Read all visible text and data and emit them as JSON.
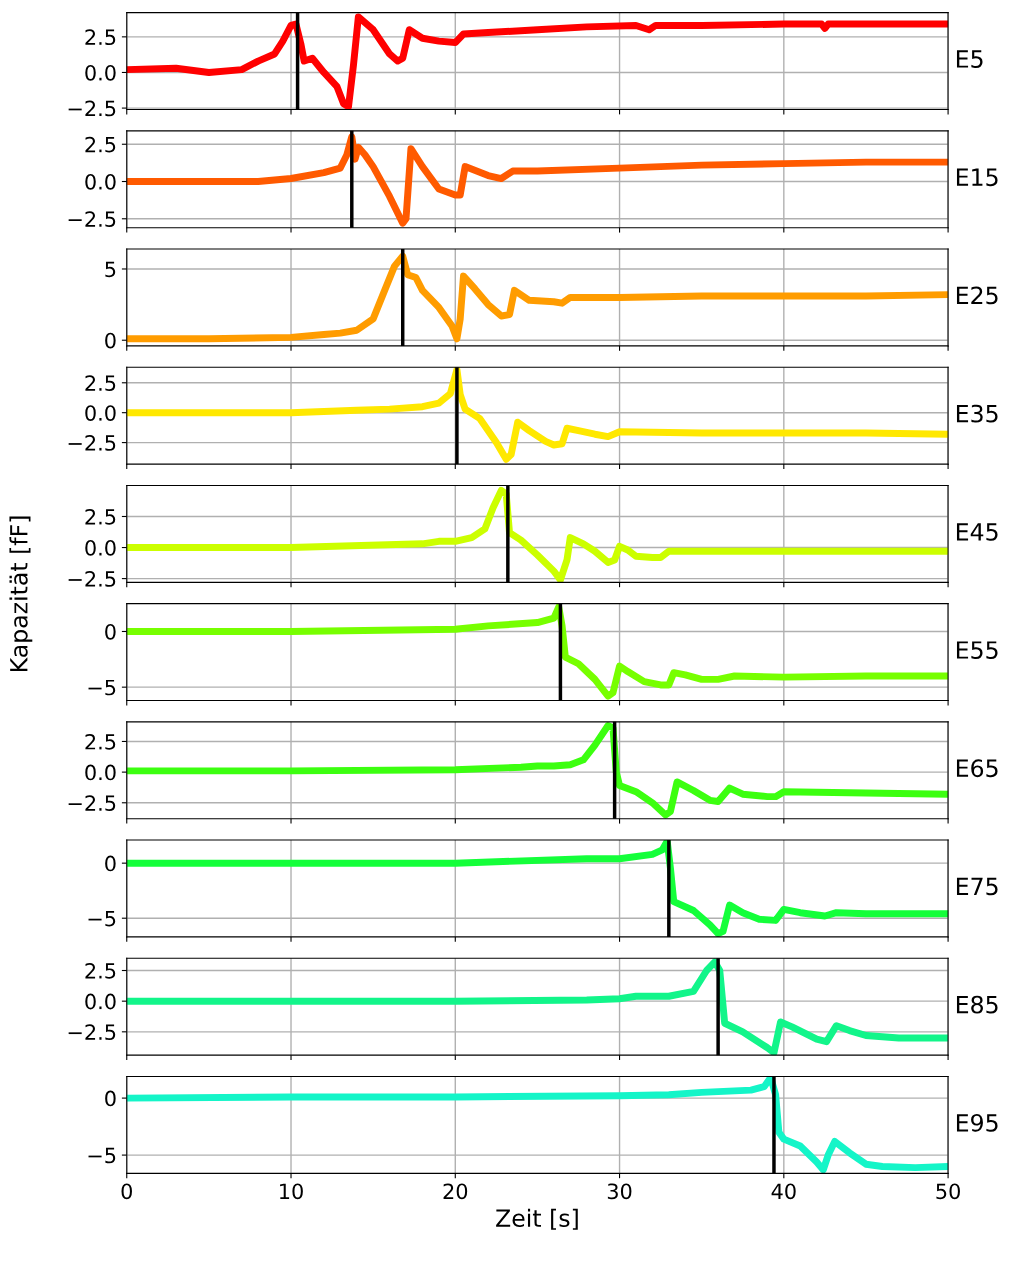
{
  "chart_data": [
    {
      "type": "line",
      "annotations": [
        "E5"
      ],
      "xlim": [
        0,
        50
      ],
      "xticks": [
        0,
        10,
        20,
        30,
        40,
        50
      ],
      "ylim": [
        -2.6,
        4.2
      ],
      "yticks": [
        {
          "value": -2.5,
          "label": "−2.5"
        },
        {
          "value": 0,
          "label": "0.0"
        },
        2.5
      ],
      "grid": true,
      "tick_labels": "y",
      "ref_lines": [
        {
          "axis": "x",
          "value": 10.4,
          "color": "#000000"
        }
      ],
      "series": [
        {
          "color": "#ff0000",
          "x": [
            0,
            3,
            5,
            7,
            8,
            9,
            9.5,
            10,
            10.3,
            10.6,
            10.8,
            11.3,
            12,
            12.8,
            13.2,
            13.5,
            13.8,
            14.1,
            15,
            16,
            16.5,
            16.8,
            17.2,
            18,
            19,
            20,
            20.5,
            22,
            25,
            28,
            31,
            31.8,
            32.2,
            35,
            40,
            42.3,
            42.5,
            42.7,
            45,
            50
          ],
          "values": [
            0.2,
            0.3,
            0.0,
            0.2,
            0.8,
            1.3,
            2.2,
            3.3,
            3.4,
            2.0,
            0.8,
            1.0,
            0,
            -1.0,
            -2.2,
            -2.4,
            0.5,
            3.9,
            3.0,
            1.3,
            0.8,
            1.0,
            3.0,
            2.4,
            2.2,
            2.1,
            2.7,
            2.8,
            3.0,
            3.2,
            3.3,
            3.0,
            3.3,
            3.3,
            3.4,
            3.4,
            3.1,
            3.4,
            3.4,
            3.4
          ]
        }
      ]
    },
    {
      "type": "line",
      "annotations": [
        "E15"
      ],
      "xlim": [
        0,
        50
      ],
      "xticks": [
        0,
        10,
        20,
        30,
        40,
        50
      ],
      "ylim": [
        -3.1,
        3.4
      ],
      "yticks": [
        {
          "value": -2.5,
          "label": "−2.5"
        },
        {
          "value": 0,
          "label": "0.0"
        },
        2.5
      ],
      "grid": true,
      "tick_labels": "y",
      "ref_lines": [
        {
          "axis": "x",
          "value": 13.7,
          "color": "#000000"
        }
      ],
      "series": [
        {
          "color": "#ff5a00",
          "x": [
            0,
            5,
            8,
            10,
            12,
            13,
            13.4,
            13.7,
            13.9,
            14.1,
            14.5,
            15,
            16,
            16.8,
            17,
            17.3,
            18,
            19,
            20,
            20.3,
            20.6,
            22,
            22.8,
            23.5,
            25,
            30,
            35,
            40,
            45,
            50
          ],
          "values": [
            0,
            0,
            0,
            0.2,
            0.6,
            0.9,
            1.8,
            3.0,
            1.5,
            2.3,
            1.8,
            1.0,
            -1.0,
            -2.8,
            -2.5,
            2.2,
            1.0,
            -0.5,
            -0.9,
            -0.9,
            1.0,
            0.4,
            0.2,
            0.7,
            0.7,
            0.9,
            1.1,
            1.2,
            1.3,
            1.3
          ]
        }
      ]
    },
    {
      "type": "line",
      "annotations": [
        "E25"
      ],
      "xlim": [
        0,
        50
      ],
      "xticks": [
        0,
        10,
        20,
        30,
        40,
        50
      ],
      "ylim": [
        -0.4,
        6.4
      ],
      "yticks": [
        0,
        5
      ],
      "grid": true,
      "tick_labels": "y",
      "ref_lines": [
        {
          "axis": "x",
          "value": 16.8,
          "color": "#000000"
        }
      ],
      "series": [
        {
          "color": "#ff9c00",
          "x": [
            0,
            5,
            10,
            12,
            13,
            14,
            15,
            15.7,
            16.3,
            16.8,
            17.1,
            17.6,
            18,
            19,
            19.8,
            20.1,
            20.3,
            20.5,
            21.2,
            22,
            22.8,
            23.3,
            23.6,
            24.5,
            26,
            26.5,
            27,
            30,
            35,
            40,
            45,
            50
          ],
          "values": [
            0.1,
            0.1,
            0.2,
            0.4,
            0.5,
            0.7,
            1.5,
            3.5,
            5.2,
            5.9,
            4.6,
            4.4,
            3.5,
            2.3,
            1.0,
            0.1,
            1.5,
            4.5,
            3.6,
            2.5,
            1.7,
            1.8,
            3.5,
            2.8,
            2.7,
            2.6,
            3.0,
            3.0,
            3.1,
            3.1,
            3.1,
            3.2
          ]
        }
      ]
    },
    {
      "type": "line",
      "annotations": [
        "E35"
      ],
      "xlim": [
        0,
        50
      ],
      "xticks": [
        0,
        10,
        20,
        30,
        40,
        50
      ],
      "ylim": [
        -4.3,
        3.8
      ],
      "yticks": [
        {
          "value": -2.5,
          "label": "−2.5"
        },
        {
          "value": 0,
          "label": "0.0"
        },
        2.5
      ],
      "grid": true,
      "tick_labels": "y",
      "ref_lines": [
        {
          "axis": "x",
          "value": 20.1,
          "color": "#000000"
        }
      ],
      "series": [
        {
          "color": "#ffe800",
          "x": [
            0,
            10,
            14,
            16,
            18,
            19,
            19.7,
            20.1,
            20.3,
            20.6,
            21.5,
            22.5,
            23.1,
            23.4,
            23.8,
            24.5,
            25.5,
            26,
            26.5,
            26.8,
            27.5,
            28.5,
            29.3,
            30,
            35,
            40,
            45,
            50
          ],
          "values": [
            0,
            0,
            0.2,
            0.3,
            0.5,
            0.8,
            1.6,
            3.6,
            1.5,
            0.3,
            -0.5,
            -2.5,
            -3.9,
            -3.5,
            -0.8,
            -1.5,
            -2.4,
            -2.7,
            -2.6,
            -1.3,
            -1.5,
            -1.8,
            -2.0,
            -1.6,
            -1.7,
            -1.7,
            -1.7,
            -1.8
          ]
        }
      ]
    },
    {
      "type": "line",
      "annotations": [
        "E45"
      ],
      "xlim": [
        0,
        50
      ],
      "xticks": [
        0,
        10,
        20,
        30,
        40,
        50
      ],
      "ylim": [
        -2.8,
        5.0
      ],
      "yticks": [
        {
          "value": -2.5,
          "label": "−2.5"
        },
        {
          "value": 0,
          "label": "0.0"
        },
        2.5
      ],
      "grid": true,
      "tick_labels": "y",
      "ref_lines": [
        {
          "axis": "x",
          "value": 23.2,
          "color": "#000000"
        }
      ],
      "series": [
        {
          "color": "#ccff00",
          "x": [
            0,
            10,
            18,
            19,
            20,
            21,
            21.8,
            22.3,
            22.8,
            23.1,
            23.3,
            24,
            25,
            26,
            26.4,
            26.8,
            27,
            27.8,
            28.5,
            29.3,
            29.7,
            30,
            30.5,
            31,
            32,
            32.5,
            33,
            40,
            50
          ],
          "values": [
            0,
            0,
            0.3,
            0.5,
            0.5,
            0.8,
            1.5,
            3.2,
            4.6,
            4.3,
            1.2,
            0.6,
            -0.6,
            -1.9,
            -2.6,
            -1.0,
            0.8,
            0.3,
            -0.3,
            -1.2,
            -1.0,
            0.1,
            -0.2,
            -0.7,
            -0.8,
            -0.8,
            -0.3,
            -0.3,
            -0.3
          ]
        }
      ]
    },
    {
      "type": "line",
      "annotations": [
        "E55"
      ],
      "ylabel": "Kapazität [fF]",
      "xlim": [
        0,
        50
      ],
      "xticks": [
        0,
        10,
        20,
        30,
        40,
        50
      ],
      "ylim": [
        -6.2,
        2.5
      ],
      "yticks": [
        {
          "value": -5,
          "label": "−5"
        },
        0
      ],
      "grid": true,
      "tick_labels": "y",
      "ref_lines": [
        {
          "axis": "x",
          "value": 26.4,
          "color": "#000000"
        }
      ],
      "series": [
        {
          "color": "#77ff00",
          "x": [
            0,
            10,
            20,
            22,
            25,
            26,
            26.3,
            26.5,
            26.7,
            27.5,
            28.5,
            29.3,
            29.6,
            30,
            30.5,
            31.5,
            32.5,
            33,
            33.3,
            34,
            35,
            36,
            37,
            40,
            45,
            50
          ],
          "values": [
            0,
            0,
            0.2,
            0.5,
            0.8,
            1.2,
            2.2,
            0.5,
            -2.3,
            -2.9,
            -4.3,
            -5.8,
            -5.5,
            -3.1,
            -3.6,
            -4.5,
            -4.8,
            -4.8,
            -3.7,
            -3.9,
            -4.3,
            -4.3,
            -4.0,
            -4.1,
            -4.0,
            -4.0
          ]
        }
      ]
    },
    {
      "type": "line",
      "annotations": [
        "E65"
      ],
      "xlim": [
        0,
        50
      ],
      "xticks": [
        0,
        10,
        20,
        30,
        40,
        50
      ],
      "ylim": [
        -3.8,
        4.1
      ],
      "yticks": [
        {
          "value": -2.5,
          "label": "−2.5"
        },
        {
          "value": 0,
          "label": "0.0"
        },
        2.5
      ],
      "grid": true,
      "tick_labels": "y",
      "ref_lines": [
        {
          "axis": "x",
          "value": 29.7,
          "color": "#000000"
        }
      ],
      "series": [
        {
          "color": "#3cff10",
          "x": [
            0,
            10,
            20,
            24,
            25,
            26,
            27,
            27.8,
            28.5,
            29.3,
            29.6,
            29.8,
            30,
            31,
            32,
            32.8,
            33.1,
            33.5,
            34.5,
            35.5,
            36,
            36.7,
            37.5,
            39,
            39.5,
            40,
            45,
            50
          ],
          "values": [
            0.1,
            0.1,
            0.2,
            0.4,
            0.5,
            0.5,
            0.6,
            1.0,
            2.2,
            3.8,
            3.6,
            0,
            -1.1,
            -1.6,
            -2.5,
            -3.5,
            -3.2,
            -0.8,
            -1.5,
            -2.3,
            -2.4,
            -1.3,
            -1.8,
            -2.0,
            -2.0,
            -1.6,
            -1.7,
            -1.8
          ]
        }
      ]
    },
    {
      "type": "line",
      "annotations": [
        "E75"
      ],
      "xlim": [
        0,
        50
      ],
      "xticks": [
        0,
        10,
        20,
        30,
        40,
        50
      ],
      "ylim": [
        -6.7,
        2.1
      ],
      "yticks": [
        {
          "value": -5,
          "label": "−5"
        },
        0
      ],
      "grid": true,
      "tick_labels": "y",
      "ref_lines": [
        {
          "axis": "x",
          "value": 33.0,
          "color": "#000000"
        }
      ],
      "series": [
        {
          "color": "#14ff3a",
          "x": [
            0,
            10,
            20,
            28,
            30,
            32,
            32.6,
            32.9,
            33.1,
            33.3,
            34.5,
            35.5,
            36,
            36.3,
            36.7,
            37.5,
            38.5,
            39.5,
            40,
            41,
            42.5,
            43.2,
            45,
            50
          ],
          "values": [
            0,
            0,
            0,
            0.4,
            0.4,
            0.8,
            1.2,
            2.0,
            -0.5,
            -3.5,
            -4.3,
            -5.6,
            -6.4,
            -6.2,
            -3.8,
            -4.5,
            -5.1,
            -5.2,
            -4.2,
            -4.5,
            -4.8,
            -4.5,
            -4.6,
            -4.6
          ]
        }
      ]
    },
    {
      "type": "line",
      "annotations": [
        "E85"
      ],
      "xlim": [
        0,
        50
      ],
      "xticks": [
        0,
        10,
        20,
        30,
        40,
        50
      ],
      "ylim": [
        -4.4,
        3.5
      ],
      "yticks": [
        {
          "value": -2.5,
          "label": "−2.5"
        },
        {
          "value": 0,
          "label": "0.0"
        },
        2.5
      ],
      "grid": true,
      "tick_labels": "y",
      "ref_lines": [
        {
          "axis": "x",
          "value": 36.0,
          "color": "#000000"
        }
      ],
      "series": [
        {
          "color": "#12f58a",
          "x": [
            0,
            10,
            20,
            28,
            30,
            31,
            33,
            34.5,
            35.3,
            35.8,
            36.1,
            36.4,
            37.5,
            39,
            39.4,
            39.8,
            40.5,
            42,
            42.6,
            43.2,
            44,
            45,
            47,
            50
          ],
          "values": [
            0,
            0,
            0,
            0.1,
            0.2,
            0.4,
            0.4,
            0.8,
            2.5,
            3.2,
            2.5,
            -1.8,
            -2.5,
            -3.8,
            -4.2,
            -1.7,
            -2.1,
            -3.1,
            -3.3,
            -2.0,
            -2.4,
            -2.8,
            -3.0,
            -3.0
          ]
        }
      ]
    },
    {
      "type": "line",
      "annotations": [
        "E95"
      ],
      "xlabel": "Zeit [s]",
      "xlim": [
        0,
        50
      ],
      "xticks": [
        0,
        10,
        20,
        30,
        40,
        50
      ],
      "ylim": [
        -6.6,
        1.9
      ],
      "yticks": [
        {
          "value": -5,
          "label": "−5"
        },
        0
      ],
      "grid": true,
      "ref_lines": [
        {
          "axis": "x",
          "value": 39.4,
          "color": "#000000"
        }
      ],
      "series": [
        {
          "color": "#14f5c8",
          "x": [
            0,
            10,
            20,
            30,
            33,
            35,
            38,
            38.8,
            39.2,
            39.5,
            39.7,
            40,
            41,
            42,
            42.4,
            42.7,
            43.1,
            44,
            45,
            46,
            48,
            50
          ],
          "values": [
            0,
            0.1,
            0.1,
            0.2,
            0.3,
            0.5,
            0.7,
            1.0,
            1.8,
            0.3,
            -3.0,
            -3.6,
            -4.2,
            -5.6,
            -6.3,
            -5.0,
            -3.8,
            -4.8,
            -5.8,
            -6.0,
            -6.1,
            -6.0
          ]
        }
      ]
    }
  ]
}
